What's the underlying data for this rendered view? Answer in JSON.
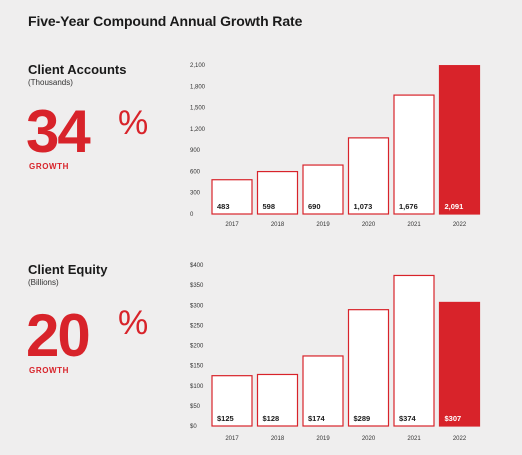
{
  "title": "Five-Year Compound Annual Growth Rate",
  "colors": {
    "accent": "#d8232a",
    "bar_fill": "#ffffff",
    "bar_stroke": "#d8232a"
  },
  "panels": [
    {
      "title": "Client Accounts",
      "unit": "(Thousands)",
      "growth_value": "34",
      "growth_sign": "%",
      "growth_label": "GROWTH"
    },
    {
      "title": "Client Equity",
      "unit": "(Billions)",
      "growth_value": "20",
      "growth_sign": "%",
      "growth_label": "GROWTH"
    }
  ],
  "chart_data": [
    {
      "type": "bar",
      "categories": [
        "2017",
        "2018",
        "2019",
        "2020",
        "2021",
        "2022"
      ],
      "values": [
        483,
        598,
        690,
        1073,
        1676,
        2091
      ],
      "value_labels": [
        "483",
        "598",
        "690",
        "1,073",
        "1,676",
        "2,091"
      ],
      "highlight_index": 5,
      "ylim": [
        0,
        2100
      ],
      "yticks": [
        0,
        300,
        600,
        900,
        1200,
        1500,
        1800,
        2100
      ],
      "ytick_labels": [
        "0",
        "300",
        "600",
        "900",
        "1,200",
        "1,500",
        "1,800",
        "2,100"
      ]
    },
    {
      "type": "bar",
      "categories": [
        "2017",
        "2018",
        "2019",
        "2020",
        "2021",
        "2022"
      ],
      "values": [
        125,
        128,
        174,
        289,
        374,
        307
      ],
      "value_labels": [
        "$125",
        "$128",
        "$174",
        "$289",
        "$374",
        "$307"
      ],
      "highlight_index": 5,
      "ylim": [
        0,
        400
      ],
      "yticks": [
        0,
        50,
        100,
        150,
        200,
        250,
        300,
        350,
        400
      ],
      "ytick_labels": [
        "$0",
        "$50",
        "$100",
        "$150",
        "$200",
        "$250",
        "$300",
        "$350",
        "$400"
      ]
    }
  ]
}
